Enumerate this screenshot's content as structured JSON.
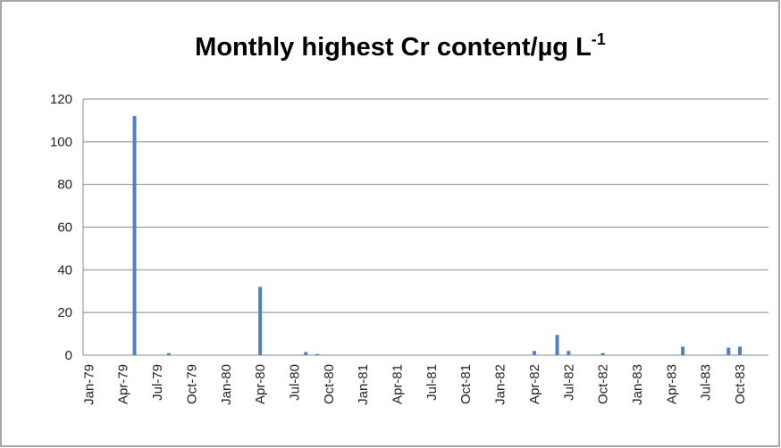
{
  "chart_data": {
    "type": "bar",
    "title": "Monthly highest Cr content/µg L",
    "title_superscript": "-1",
    "categories": [
      "Jan-79",
      null,
      null,
      "Apr-79",
      null,
      null,
      "Jul-79",
      null,
      null,
      "Oct-79",
      null,
      null,
      "Jan-80",
      null,
      null,
      "Apr-80",
      null,
      null,
      "Jul-80",
      null,
      null,
      "Oct-80",
      null,
      null,
      "Jan-81",
      null,
      null,
      "Apr-81",
      null,
      null,
      "Jul-81",
      null,
      null,
      "Oct-81",
      null,
      null,
      "Jan-82",
      null,
      null,
      "Apr-82",
      null,
      null,
      "Jul-82",
      null,
      null,
      "Oct-82",
      null,
      null,
      "Jan-83",
      null,
      null,
      "Apr-83",
      null,
      null,
      "Jul-83",
      null,
      null,
      "Oct-83",
      null,
      null
    ],
    "values": [
      null,
      null,
      null,
      null,
      112,
      null,
      null,
      1,
      null,
      null,
      null,
      null,
      null,
      null,
      null,
      32,
      null,
      null,
      null,
      1.5,
      0.5,
      null,
      null,
      null,
      null,
      null,
      null,
      null,
      null,
      null,
      null,
      null,
      null,
      null,
      null,
      null,
      null,
      null,
      null,
      2,
      null,
      9.5,
      2,
      null,
      null,
      1,
      null,
      null,
      null,
      null,
      null,
      null,
      4,
      null,
      null,
      null,
      3.5,
      4,
      null,
      null
    ],
    "color": "#4f81bd",
    "ylim": [
      0,
      120
    ],
    "yticks": [
      0,
      20,
      40,
      60,
      80,
      100,
      120
    ],
    "grid": true
  }
}
